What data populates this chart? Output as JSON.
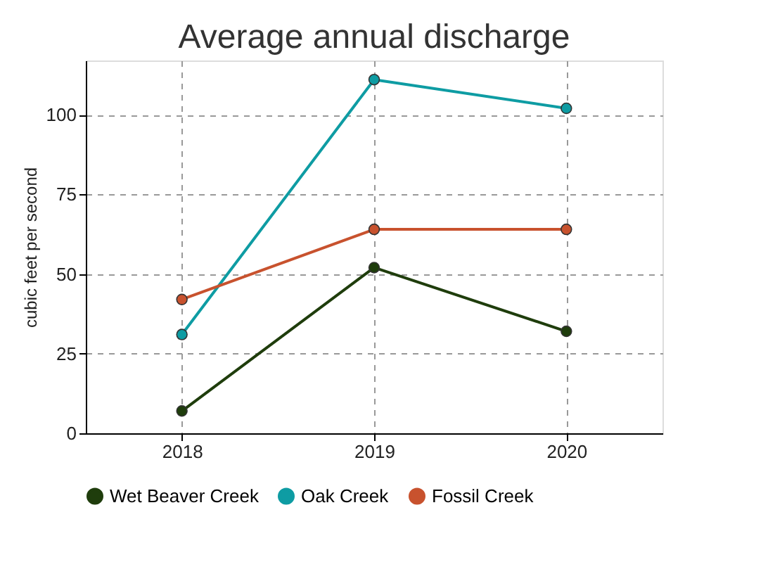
{
  "chart_data": {
    "type": "line",
    "title": "Average annual discharge",
    "ylabel": "cubic feet per second",
    "categories": [
      "2018",
      "2019",
      "2020"
    ],
    "series": [
      {
        "name": "Wet Beaver Creek",
        "color": "#1f3d0c",
        "values": [
          7,
          52,
          32
        ]
      },
      {
        "name": "Oak Creek",
        "color": "#0e9ca3",
        "values": [
          31,
          111,
          102
        ]
      },
      {
        "name": "Fossil Creek",
        "color": "#c8522e",
        "values": [
          42,
          64,
          64
        ]
      }
    ],
    "ylim": [
      0,
      117
    ],
    "yticks": [
      0,
      25,
      50,
      75,
      100
    ],
    "grid": true,
    "legend": "bottom",
    "marker": "circle",
    "line_style": "solid"
  }
}
